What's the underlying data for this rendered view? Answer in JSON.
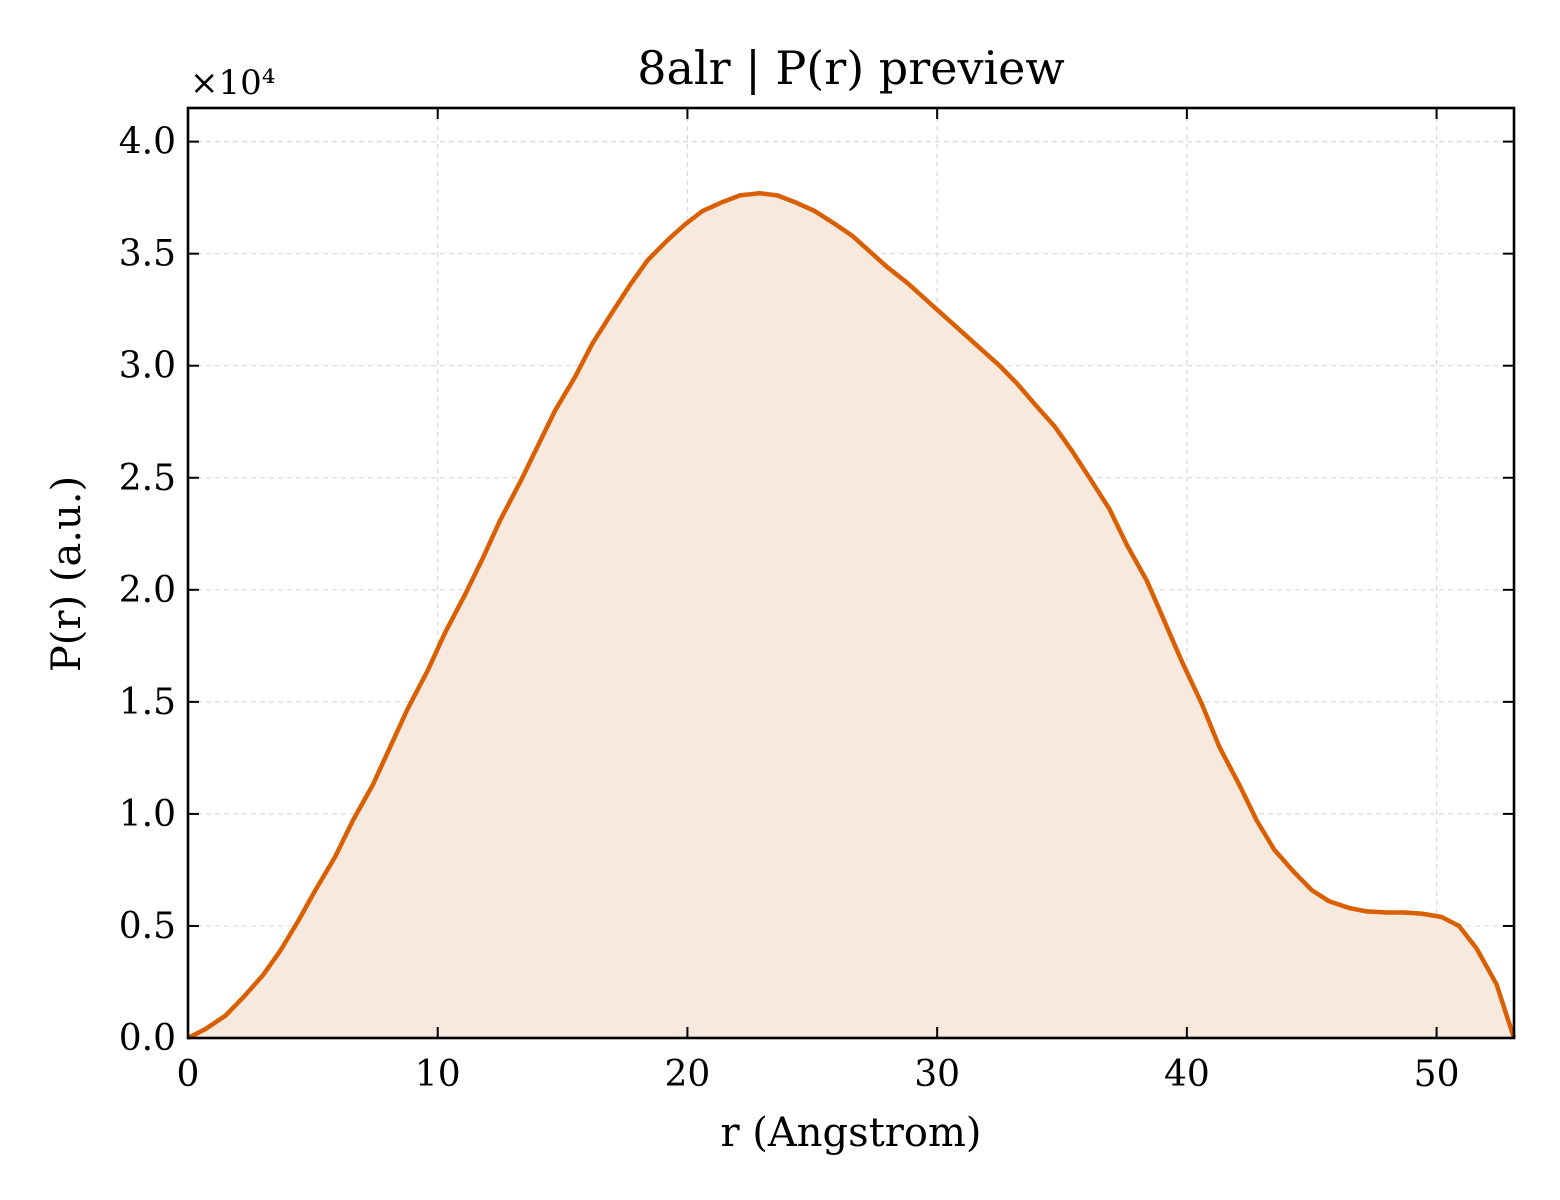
{
  "chart_data": {
    "type": "area",
    "title": "8alr | P(r) preview",
    "xlabel": "r (Angstrom)",
    "ylabel": "P(r) (a.u.)",
    "y_multiplier": "×10⁴",
    "xlim": [
      0,
      53.1
    ],
    "ylim": [
      0,
      41500
    ],
    "x_ticks": [
      0,
      10,
      20,
      30,
      40,
      50
    ],
    "x_tick_labels": [
      "0",
      "10",
      "20",
      "30",
      "40",
      "50"
    ],
    "y_ticks": [
      0,
      5000,
      10000,
      15000,
      20000,
      25000,
      30000,
      35000,
      40000
    ],
    "y_tick_labels": [
      "0.0",
      "0.5",
      "1.0",
      "1.5",
      "2.0",
      "2.5",
      "3.0",
      "3.5",
      "4.0"
    ],
    "grid": true,
    "colors": {
      "line": "#d95f02",
      "fill": "#f8e9df",
      "grid": "#d9d9d9"
    },
    "series": [
      {
        "x": [
          0,
          0.7,
          1.5,
          2.2,
          3.0,
          3.7,
          4.4,
          5.1,
          5.9,
          6.6,
          7.4,
          8.1,
          8.8,
          9.6,
          10.3,
          11.1,
          11.8,
          12.5,
          13.3,
          14.0,
          14.7,
          15.5,
          16.2,
          17.0,
          17.7,
          18.4,
          19.2,
          19.9,
          20.6,
          21.4,
          22.1,
          22.9,
          23.6,
          24.3,
          25.1,
          25.8,
          26.6,
          27.3,
          28.0,
          28.8,
          29.5,
          30.2,
          31.0,
          31.7,
          32.5,
          33.2,
          33.9,
          34.7,
          35.4,
          36.1,
          36.9,
          37.6,
          38.4,
          39.1,
          39.8,
          40.6,
          41.3,
          42.1,
          42.8,
          43.5,
          44.3,
          45.0,
          45.7,
          46.5,
          47.2,
          48.0,
          48.7,
          49.4,
          50.2,
          50.9,
          51.6,
          52.4,
          53.1
        ],
        "y": [
          0,
          400,
          1000,
          1800,
          2800,
          3900,
          5200,
          6600,
          8100,
          9700,
          11300,
          13000,
          14700,
          16400,
          18100,
          19800,
          21400,
          23100,
          24800,
          26400,
          28000,
          29500,
          31000,
          32400,
          33600,
          34700,
          35600,
          36300,
          36900,
          37300,
          37600,
          37700,
          37600,
          37300,
          36900,
          36400,
          35800,
          35100,
          34400,
          33700,
          33000,
          32300,
          31500,
          30800,
          30000,
          29200,
          28300,
          27300,
          26200,
          25000,
          23600,
          22000,
          20400,
          18600,
          16800,
          14900,
          13000,
          11300,
          9700,
          8400,
          7400,
          6600,
          6100,
          5800,
          5650,
          5600,
          5600,
          5550,
          5400,
          5000,
          4000,
          2400,
          0
        ]
      }
    ]
  }
}
